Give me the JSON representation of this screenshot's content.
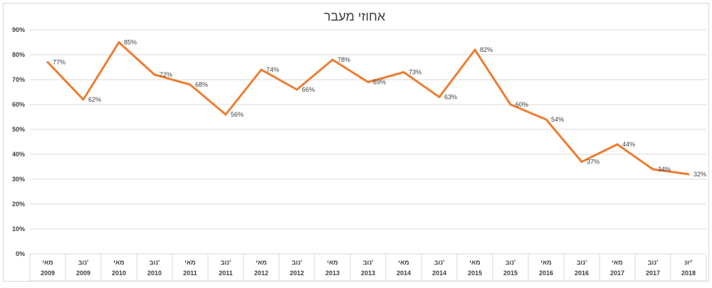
{
  "chart_data": {
    "type": "line",
    "title": "אחוזי מעבר",
    "xlabel": "",
    "ylabel": "",
    "ylim": [
      0,
      90
    ],
    "yticks": [
      "0%",
      "10%",
      "20%",
      "30%",
      "40%",
      "50%",
      "60%",
      "70%",
      "80%",
      "90%"
    ],
    "grid": true,
    "legend": "none",
    "categories": [
      {
        "month": "מאי",
        "year": "2009"
      },
      {
        "month": "נוב'",
        "year": "2009"
      },
      {
        "month": "מאי",
        "year": "2010"
      },
      {
        "month": "נוב'",
        "year": "2010"
      },
      {
        "month": "מאי",
        "year": "2011"
      },
      {
        "month": "נוב'",
        "year": "2011"
      },
      {
        "month": "מאי",
        "year": "2012"
      },
      {
        "month": "נוב'",
        "year": "2012"
      },
      {
        "month": "מאי",
        "year": "2013"
      },
      {
        "month": "נוב'",
        "year": "2013"
      },
      {
        "month": "מאי",
        "year": "2014"
      },
      {
        "month": "נוב'",
        "year": "2014"
      },
      {
        "month": "מאי",
        "year": "2015"
      },
      {
        "month": "נוב'",
        "year": "2015"
      },
      {
        "month": "מאי",
        "year": "2016"
      },
      {
        "month": "נוב'",
        "year": "2016"
      },
      {
        "month": "מאי",
        "year": "2017"
      },
      {
        "month": "נוב'",
        "year": "2017"
      },
      {
        "month": "יונ'",
        "year": "2018"
      }
    ],
    "values": [
      77,
      62,
      85,
      72,
      68,
      56,
      74,
      66,
      78,
      69,
      73,
      63,
      82,
      60,
      54,
      37,
      44,
      34,
      32
    ],
    "labels": [
      "77%",
      "62%",
      "85%",
      "72%",
      "68%",
      "56%",
      "74%",
      "66%",
      "78%",
      "69%",
      "73%",
      "63%",
      "82%",
      "60%",
      "54%",
      "37%",
      "44%",
      "34%",
      "32%"
    ],
    "line_color": "#ED7D31",
    "grid_color": "#D9D9D9"
  }
}
